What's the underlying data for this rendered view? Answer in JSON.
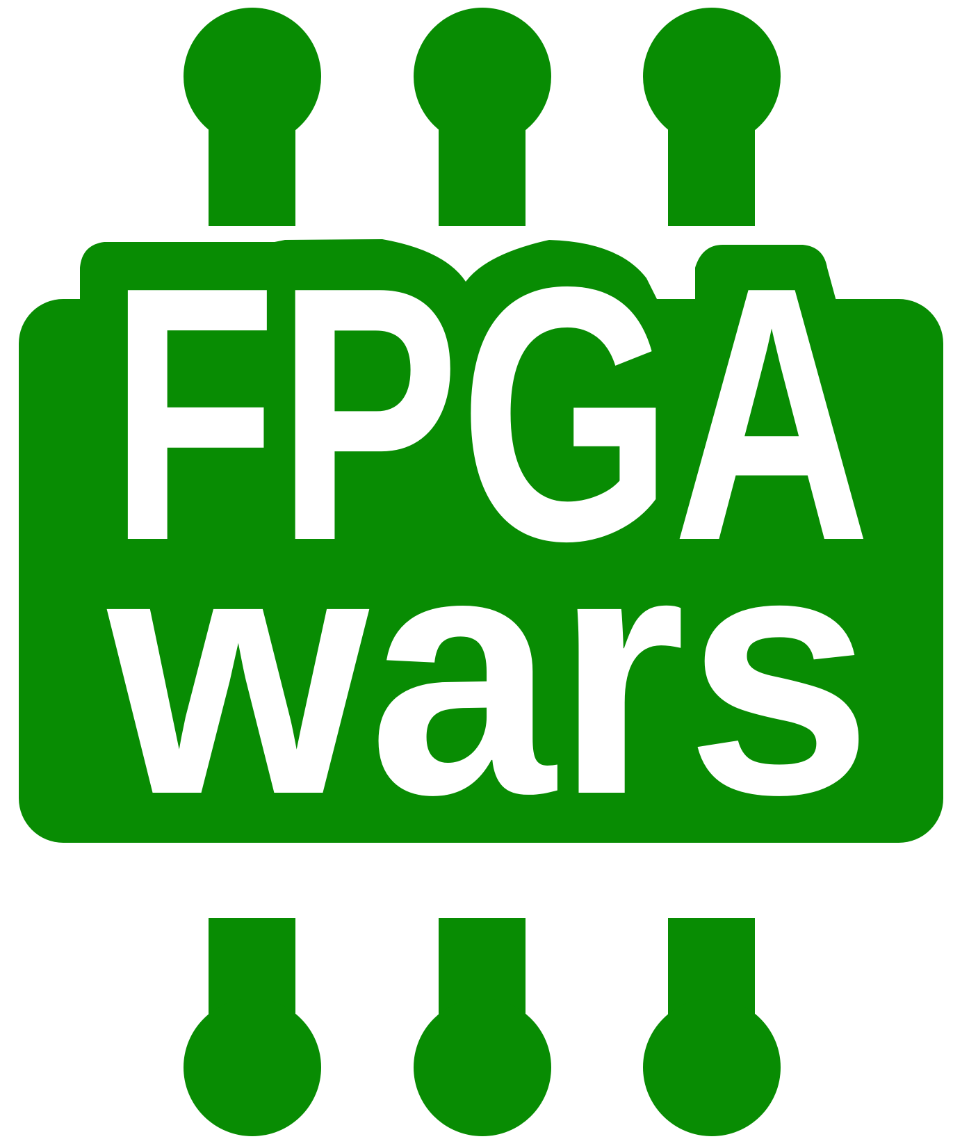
{
  "logo": {
    "line1": "FPGA",
    "line2": "wars",
    "colors": {
      "brand_green": "#088c03",
      "text": "#ffffff",
      "background": "#ffffff"
    },
    "icon_name": "chip-with-pins-icon"
  }
}
